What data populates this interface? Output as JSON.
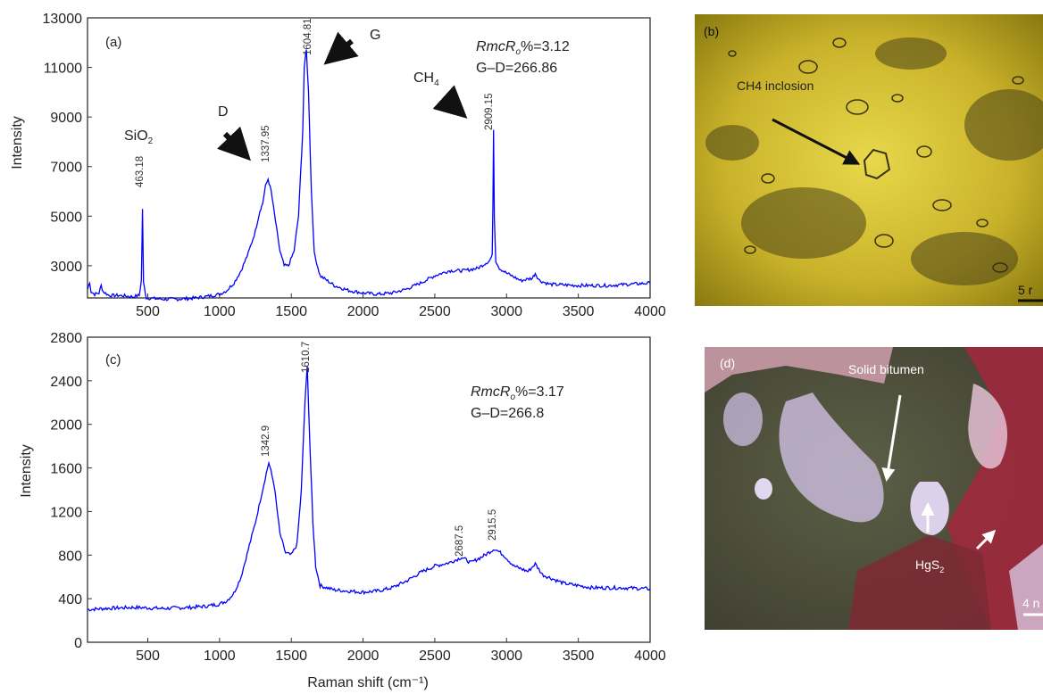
{
  "chart_data": [
    {
      "type": "line",
      "panel_label": "(a)",
      "xlabel": "",
      "ylabel": "Intensity",
      "xlim": [
        80,
        4000
      ],
      "ylim": [
        1700,
        13000
      ],
      "xticks": [
        500,
        1000,
        1500,
        2000,
        2500,
        3000,
        3500,
        4000
      ],
      "yticks": [
        3000,
        5000,
        7000,
        9000,
        11000,
        13000
      ],
      "color": "#0000ff",
      "series_points": [
        [
          80,
          2050
        ],
        [
          95,
          2350
        ],
        [
          105,
          1950
        ],
        [
          130,
          1850
        ],
        [
          160,
          1900
        ],
        [
          175,
          2200
        ],
        [
          190,
          1950
        ],
        [
          230,
          1800
        ],
        [
          300,
          1800
        ],
        [
          400,
          1750
        ],
        [
          440,
          1800
        ],
        [
          455,
          2400
        ],
        [
          463,
          5300
        ],
        [
          470,
          2300
        ],
        [
          490,
          1700
        ],
        [
          600,
          1650
        ],
        [
          700,
          1650
        ],
        [
          800,
          1680
        ],
        [
          900,
          1750
        ],
        [
          1000,
          1850
        ],
        [
          1050,
          2000
        ],
        [
          1100,
          2300
        ],
        [
          1150,
          2800
        ],
        [
          1200,
          3500
        ],
        [
          1250,
          4400
        ],
        [
          1280,
          5200
        ],
        [
          1300,
          5500
        ],
        [
          1320,
          6200
        ],
        [
          1338,
          6500
        ],
        [
          1360,
          6000
        ],
        [
          1390,
          4800
        ],
        [
          1420,
          3600
        ],
        [
          1450,
          3000
        ],
        [
          1480,
          3000
        ],
        [
          1520,
          3600
        ],
        [
          1550,
          5000
        ],
        [
          1580,
          8500
        ],
        [
          1590,
          11000
        ],
        [
          1605,
          11700
        ],
        [
          1620,
          10000
        ],
        [
          1640,
          6000
        ],
        [
          1660,
          3500
        ],
        [
          1700,
          2600
        ],
        [
          1800,
          2200
        ],
        [
          1900,
          2000
        ],
        [
          2000,
          1900
        ],
        [
          2100,
          1850
        ],
        [
          2200,
          1900
        ],
        [
          2300,
          2050
        ],
        [
          2400,
          2300
        ],
        [
          2500,
          2600
        ],
        [
          2600,
          2800
        ],
        [
          2700,
          2800
        ],
        [
          2800,
          2900
        ],
        [
          2880,
          3200
        ],
        [
          2900,
          3400
        ],
        [
          2905,
          5500
        ],
        [
          2909,
          8500
        ],
        [
          2915,
          5000
        ],
        [
          2925,
          3200
        ],
        [
          2950,
          2900
        ],
        [
          3000,
          2700
        ],
        [
          3100,
          2400
        ],
        [
          3180,
          2500
        ],
        [
          3200,
          2700
        ],
        [
          3230,
          2400
        ],
        [
          3300,
          2250
        ],
        [
          3500,
          2200
        ],
        [
          3700,
          2200
        ],
        [
          3850,
          2250
        ],
        [
          4000,
          2300
        ]
      ],
      "peak_labels": [
        "463.18",
        "1337.95",
        "1604.81",
        "2909.15"
      ],
      "annotations": {
        "sio2": "SiO",
        "sio2_sub": "2",
        "d": "D",
        "g": "G",
        "ch4": "CH",
        "ch4_sub": "4"
      },
      "text_ratio_prefix": "RmcR",
      "text_ratio_sub": "o",
      "text_ratio_suffix": "%=3.12",
      "text_gd": "G–D=266.86"
    },
    {
      "type": "line",
      "panel_label": "(c)",
      "xlabel": "Raman shift (cm⁻¹)",
      "ylabel": "Intensity",
      "xlim": [
        80,
        4000
      ],
      "ylim": [
        0,
        2800
      ],
      "xticks": [
        500,
        1000,
        1500,
        2000,
        2500,
        3000,
        3500,
        4000
      ],
      "yticks": [
        0,
        400,
        800,
        1200,
        1600,
        2000,
        2400,
        2800
      ],
      "color": "#0000ff",
      "series_points": [
        [
          80,
          300
        ],
        [
          200,
          310
        ],
        [
          400,
          320
        ],
        [
          600,
          310
        ],
        [
          800,
          320
        ],
        [
          900,
          330
        ],
        [
          1000,
          350
        ],
        [
          1050,
          380
        ],
        [
          1100,
          450
        ],
        [
          1150,
          600
        ],
        [
          1200,
          850
        ],
        [
          1250,
          1100
        ],
        [
          1300,
          1400
        ],
        [
          1343,
          1650
        ],
        [
          1380,
          1450
        ],
        [
          1420,
          1000
        ],
        [
          1460,
          820
        ],
        [
          1500,
          800
        ],
        [
          1540,
          900
        ],
        [
          1570,
          1400
        ],
        [
          1595,
          2200
        ],
        [
          1611,
          2530
        ],
        [
          1630,
          1800
        ],
        [
          1650,
          1100
        ],
        [
          1670,
          700
        ],
        [
          1700,
          520
        ],
        [
          1800,
          480
        ],
        [
          1900,
          470
        ],
        [
          2000,
          460
        ],
        [
          2100,
          470
        ],
        [
          2200,
          500
        ],
        [
          2300,
          560
        ],
        [
          2400,
          640
        ],
        [
          2500,
          700
        ],
        [
          2600,
          730
        ],
        [
          2688,
          780
        ],
        [
          2750,
          730
        ],
        [
          2850,
          800
        ],
        [
          2916,
          860
        ],
        [
          2980,
          800
        ],
        [
          3050,
          700
        ],
        [
          3150,
          650
        ],
        [
          3200,
          720
        ],
        [
          3250,
          620
        ],
        [
          3400,
          540
        ],
        [
          3600,
          500
        ],
        [
          3800,
          500
        ],
        [
          4000,
          490
        ]
      ],
      "peak_labels": [
        "1342.9",
        "1610.7",
        "2687.5",
        "2915.5"
      ],
      "text_ratio_prefix": "RmcR",
      "text_ratio_sub": "o",
      "text_ratio_suffix": "%=3.17",
      "text_gd": "G–D=266.8"
    }
  ],
  "images": {
    "b": {
      "panel_label": "(b)",
      "caption": "CH4 inclosion",
      "scale": "5 r"
    },
    "d": {
      "panel_label": "(d)",
      "caption": "Solid bitumen",
      "mineral": "HgS",
      "mineral_sub": "2",
      "scale": "4 n"
    }
  }
}
